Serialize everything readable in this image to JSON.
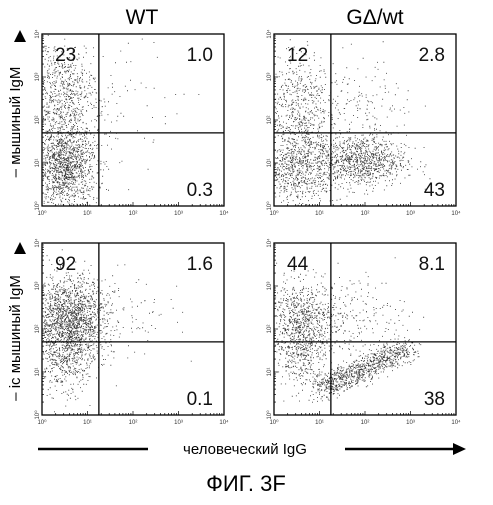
{
  "figure": {
    "columns": [
      "WT",
      "GΔ/wt"
    ],
    "row_labels": [
      "– мышиный IgM",
      "– ic мышиный IgM"
    ],
    "x_axis_label": "человеческий IgG",
    "caption": "ФИГ. 3F",
    "tick_labels": [
      "10⁰",
      "10¹",
      "10²",
      "10³",
      "10⁴"
    ]
  },
  "chart_data": [
    {
      "type": "scatter",
      "title": "WT",
      "row": 0,
      "col": 0,
      "quadrants": {
        "upper_left": "23",
        "upper_right": "1.0",
        "lower_right": "0.3"
      },
      "xlim": [
        0,
        4
      ],
      "ylim": [
        0,
        4
      ],
      "log_scale": true,
      "gate": {
        "x": 1.25,
        "y": 1.7
      },
      "clusters": [
        {
          "cx": 0.5,
          "cy": 0.9,
          "sx": 0.35,
          "sy": 0.45,
          "n": 1300
        },
        {
          "cx": 0.45,
          "cy": 2.5,
          "sx": 0.35,
          "sy": 0.7,
          "n": 750
        },
        {
          "cx": 1.4,
          "cy": 2.4,
          "sx": 0.8,
          "sy": 0.8,
          "n": 120
        }
      ]
    },
    {
      "type": "scatter",
      "title": "GΔ/wt",
      "row": 0,
      "col": 1,
      "quadrants": {
        "upper_left": "12",
        "upper_right": "2.8",
        "lower_right": "43"
      },
      "xlim": [
        0,
        4
      ],
      "ylim": [
        0,
        4
      ],
      "log_scale": true,
      "gate": {
        "x": 1.25,
        "y": 1.7
      },
      "clusters": [
        {
          "cx": 0.5,
          "cy": 0.95,
          "sx": 0.4,
          "sy": 0.45,
          "n": 800
        },
        {
          "cx": 1.9,
          "cy": 1.05,
          "sx": 0.5,
          "sy": 0.3,
          "n": 950
        },
        {
          "cx": 0.5,
          "cy": 2.4,
          "sx": 0.35,
          "sy": 0.6,
          "n": 500
        },
        {
          "cx": 1.9,
          "cy": 2.2,
          "sx": 0.6,
          "sy": 0.6,
          "n": 180
        }
      ]
    },
    {
      "type": "scatter",
      "title": "",
      "row": 1,
      "col": 0,
      "quadrants": {
        "upper_left": "92",
        "upper_right": "1.6",
        "lower_right": "0.1"
      },
      "xlim": [
        0,
        4
      ],
      "ylim": [
        0,
        4
      ],
      "log_scale": true,
      "gate": {
        "x": 1.25,
        "y": 1.7
      },
      "clusters": [
        {
          "cx": 0.6,
          "cy": 2.2,
          "sx": 0.4,
          "sy": 0.5,
          "n": 1700
        },
        {
          "cx": 0.5,
          "cy": 1.2,
          "sx": 0.3,
          "sy": 0.4,
          "n": 300
        },
        {
          "cx": 1.6,
          "cy": 2.3,
          "sx": 0.7,
          "sy": 0.5,
          "n": 110
        }
      ]
    },
    {
      "type": "scatter",
      "title": "",
      "row": 1,
      "col": 1,
      "quadrants": {
        "upper_left": "44",
        "upper_right": "8.1",
        "lower_right": "38"
      },
      "xlim": [
        0,
        4
      ],
      "ylim": [
        0,
        4
      ],
      "log_scale": true,
      "gate": {
        "x": 1.25,
        "y": 1.7
      },
      "clusters": [
        {
          "cx": 0.6,
          "cy": 2.2,
          "sx": 0.35,
          "sy": 0.45,
          "n": 750
        },
        {
          "cx": 0.6,
          "cy": 1.3,
          "sx": 0.3,
          "sy": 0.35,
          "n": 250
        },
        {
          "band": true,
          "x0": 1.0,
          "y0": 0.6,
          "x1": 2.9,
          "y1": 1.55,
          "n": 900
        },
        {
          "cx": 1.7,
          "cy": 2.3,
          "sx": 0.6,
          "sy": 0.5,
          "n": 220
        }
      ]
    }
  ]
}
